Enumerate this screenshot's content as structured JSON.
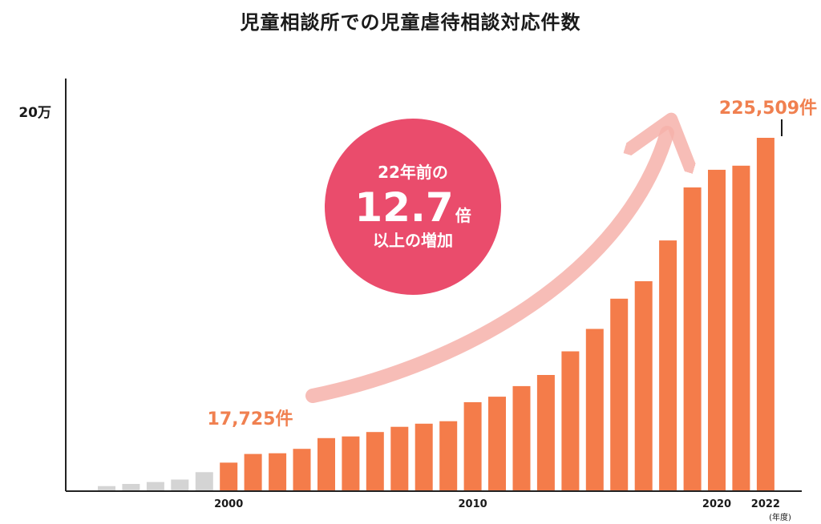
{
  "chart_data": {
    "type": "bar",
    "title": "児童相談所での児童虐待相談対応件数",
    "x_unit_label": "(年度)",
    "y_tick_label": "20万",
    "y_tick_value": 200000,
    "ylim": [
      0,
      230000
    ],
    "x": [
      1995,
      1996,
      1997,
      1998,
      1999,
      2000,
      2001,
      2002,
      2003,
      2004,
      2005,
      2006,
      2007,
      2008,
      2009,
      2010,
      2011,
      2012,
      2013,
      2014,
      2015,
      2016,
      2017,
      2018,
      2019,
      2020,
      2021,
      2022
    ],
    "values": [
      2722,
      4102,
      5352,
      6932,
      11631,
      17725,
      23274,
      23738,
      26569,
      33408,
      34472,
      37323,
      40639,
      42664,
      44211,
      56384,
      59919,
      66701,
      73802,
      88931,
      103286,
      122575,
      133778,
      159838,
      193780,
      205044,
      207660,
      225509
    ],
    "highlight_from": 2000,
    "x_tick_labels": [
      {
        "year": 2000,
        "label": "2000"
      },
      {
        "year": 2010,
        "label": "2010"
      },
      {
        "year": 2020,
        "label": "2020"
      },
      {
        "year": 2022,
        "label": "2022"
      }
    ],
    "annotations": {
      "start_value_label": "17,725件",
      "end_value_label": "225,509件",
      "circle_line1": "22年前の",
      "circle_big_number": "12.7",
      "circle_big_unit": "倍",
      "circle_line3": "以上の増加"
    },
    "colors": {
      "highlight_bar": "#f47c4a",
      "past_bar": "#d4d4d4",
      "value_label": "#f08050",
      "circle": "#ea4c6c",
      "arrow": "#f6b2aa",
      "axis": "#222222"
    },
    "grid": false
  }
}
